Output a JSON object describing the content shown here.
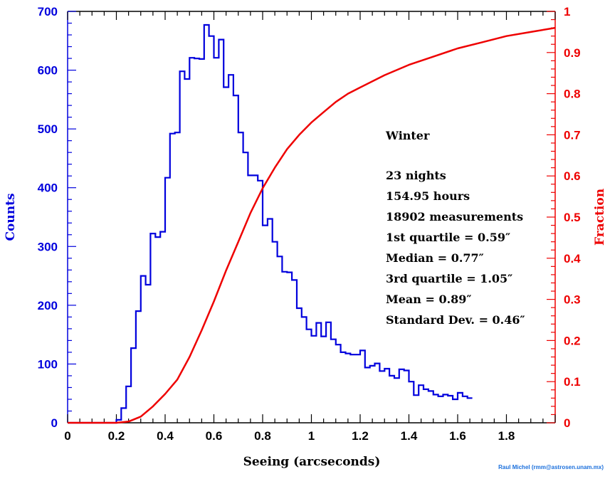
{
  "chart_data": {
    "type": "histogram-with-cumulative-line",
    "title": "",
    "xlabel": "Seeing (arcseconds)",
    "ylabel_left": "Counts",
    "ylabel_right": "Fraction",
    "xlim": [
      0,
      2.0
    ],
    "ylim_left": [
      0,
      700
    ],
    "ylim_right": [
      0,
      1.0
    ],
    "x_ticks": [
      "0",
      "0.2",
      "0.4",
      "0.6",
      "0.8",
      "1",
      "1.2",
      "1.4",
      "1.6",
      "1.8"
    ],
    "x_tick_values": [
      0,
      0.2,
      0.4,
      0.6,
      0.8,
      1.0,
      1.2,
      1.4,
      1.6,
      1.8
    ],
    "y_left_ticks": [
      "0",
      "100",
      "200",
      "300",
      "400",
      "500",
      "600",
      "700"
    ],
    "y_left_tick_values": [
      0,
      100,
      200,
      300,
      400,
      500,
      600,
      700
    ],
    "y_right_ticks": [
      "0",
      "0.1",
      "0.2",
      "0.3",
      "0.4",
      "0.5",
      "0.6",
      "0.7",
      "0.8",
      "0.9",
      "1"
    ],
    "y_right_tick_values": [
      0,
      0.1,
      0.2,
      0.3,
      0.4,
      0.5,
      0.6,
      0.7,
      0.8,
      0.9,
      1.0
    ],
    "colors": {
      "histogram": "#0000dd",
      "cumulative": "#ee0000",
      "axis_left": "#0000dd",
      "axis_right": "#ee0000"
    },
    "series": [
      {
        "role": "histogram",
        "axis": "left",
        "bin_width": 0.02,
        "bin_start": 0.0,
        "values": [
          0,
          0,
          0,
          0,
          0,
          0,
          0,
          0,
          0,
          0,
          5,
          25,
          62,
          127,
          190,
          250,
          235,
          322,
          316,
          325,
          417,
          492,
          494,
          598,
          585,
          621,
          620,
          619,
          677,
          658,
          621,
          652,
          571,
          592,
          557,
          494,
          460,
          421,
          421,
          412,
          336,
          347,
          308,
          283,
          257,
          256,
          243,
          195,
          180,
          159,
          148,
          170,
          147,
          171,
          142,
          133,
          120,
          118,
          116,
          116,
          123,
          94,
          97,
          101,
          88,
          92,
          80,
          76,
          91,
          89,
          70,
          47,
          64,
          57,
          54,
          48,
          45,
          48,
          46,
          40,
          51,
          45,
          42
        ]
      },
      {
        "role": "cumulative",
        "axis": "right",
        "x": [
          0.0,
          0.2,
          0.25,
          0.3,
          0.35,
          0.4,
          0.45,
          0.5,
          0.55,
          0.6,
          0.65,
          0.7,
          0.75,
          0.8,
          0.85,
          0.9,
          0.95,
          1.0,
          1.05,
          1.1,
          1.15,
          1.2,
          1.3,
          1.4,
          1.5,
          1.6,
          1.7,
          1.8,
          1.9,
          2.0
        ],
        "y": [
          0.0,
          0.0,
          0.003,
          0.015,
          0.04,
          0.07,
          0.105,
          0.16,
          0.225,
          0.295,
          0.37,
          0.44,
          0.51,
          0.57,
          0.62,
          0.665,
          0.7,
          0.73,
          0.755,
          0.78,
          0.8,
          0.815,
          0.845,
          0.87,
          0.89,
          0.91,
          0.925,
          0.94,
          0.95,
          0.96
        ]
      }
    ]
  },
  "annotations": {
    "season": "Winter",
    "nights": "23 nights",
    "hours": "154.95 hours",
    "measurements": "18902 measurements",
    "q1": "1st quartile = 0.59″",
    "median": "Median = 0.77″",
    "q3": "3rd quartile = 1.05″",
    "mean": "Mean = 0.89″",
    "std": "Standard Dev. = 0.46″"
  },
  "credit": "Raul Michel (rmm@astrosen.unam.mx)"
}
